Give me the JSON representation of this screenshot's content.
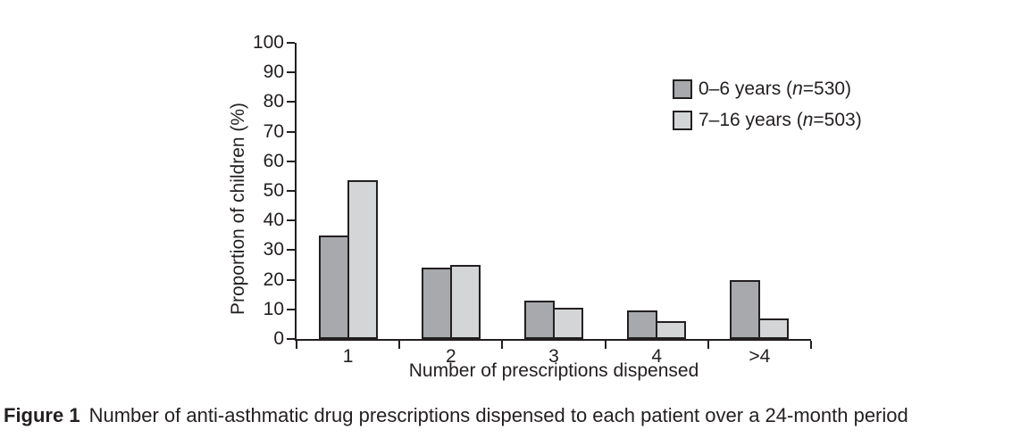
{
  "chart_data": {
    "type": "bar",
    "title": "",
    "categories": [
      "1",
      "2",
      "3",
      "4",
      ">4"
    ],
    "series": [
      {
        "name": "0–6 years (n=530)",
        "color": "#a7a9ac",
        "values": [
          35,
          24,
          13,
          9.5,
          20
        ]
      },
      {
        "name": "7–16 years (n=503)",
        "color": "#d4d5d7",
        "values": [
          53.5,
          25,
          10.5,
          6,
          7
        ]
      }
    ],
    "xlabel": "Number of prescriptions dispensed",
    "ylabel": "Proportion of children (%)",
    "ylim": [
      0,
      100
    ],
    "yticks": [
      0,
      10,
      20,
      30,
      40,
      50,
      60,
      70,
      80,
      90,
      100
    ],
    "grid": false,
    "legend_position": "top-right",
    "axis_color": "#231f20"
  },
  "legend": {
    "items": [
      {
        "pre": "0–6 years (",
        "var": "n",
        "post": "=530)"
      },
      {
        "pre": "7–16 years (",
        "var": "n",
        "post": "=503)"
      }
    ]
  },
  "caption": {
    "label": "Figure 1",
    "text": "Number of anti-asthmatic drug prescriptions dispensed to each patient over a 24-month period"
  }
}
